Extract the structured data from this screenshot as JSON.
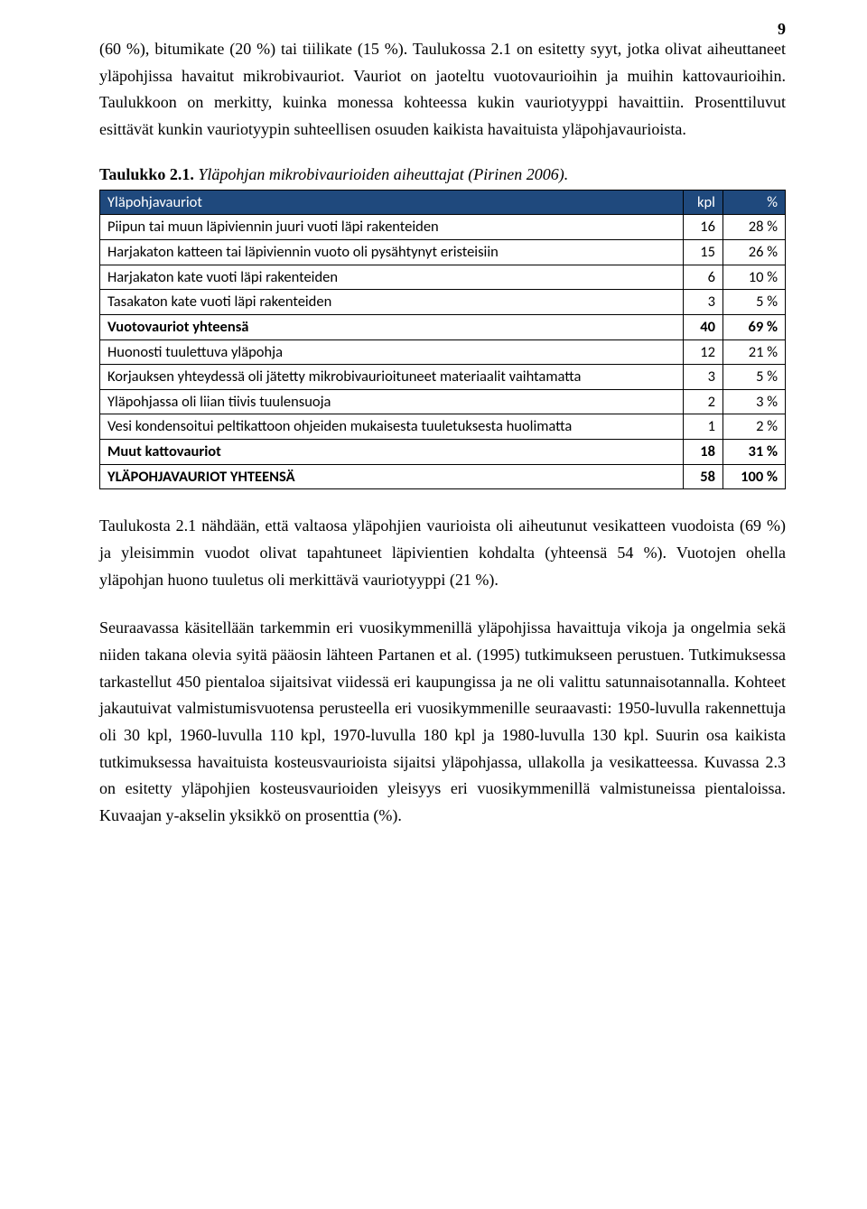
{
  "page_number": "9",
  "paragraphs": {
    "p1": "(60 %), bitumikate (20 %) tai tiilikate (15 %). Taulukossa 2.1 on esitetty syyt, jotka olivat aiheuttaneet yläpohjissa havaitut mikrobivauriot. Vauriot on jaoteltu vuotovaurioihin ja muihin kattovaurioihin. Taulukkoon on merkitty, kuinka monessa kohteessa kukin vauriotyyppi havaittiin. Prosenttiluvut esittävät kunkin vauriotyypin suhteellisen osuuden kaikista havaituista yläpohjavaurioista.",
    "p2": "Taulukosta 2.1 nähdään, että valtaosa yläpohjien vaurioista oli aiheutunut vesikatteen vuodoista (69 %) ja yleisimmin vuodot olivat tapahtuneet läpivientien kohdalta (yhteensä 54 %). Vuotojen ohella yläpohjan huono tuuletus oli merkittävä vauriotyyppi (21 %).",
    "p3": "Seuraavassa käsitellään tarkemmin eri vuosikymmenillä yläpohjissa havaittuja vikoja ja ongelmia sekä niiden takana olevia syitä pääosin lähteen Partanen et al. (1995) tutkimukseen perustuen. Tutkimuksessa tarkastellut 450 pientaloa sijaitsivat viidessä eri kaupungissa ja ne oli valittu satunnaisotannalla. Kohteet jakautuivat valmistumisvuotensa perusteella eri vuosikymmenille seuraavasti: 1950-luvulla rakennettuja oli 30 kpl, 1960-luvulla 110 kpl, 1970-luvulla 180 kpl ja 1980-luvulla 130 kpl. Suurin osa kaikista tutkimuksessa havaituista kosteusvaurioista sijaitsi yläpohjassa, ullakolla ja vesikatteessa. Kuvassa 2.3 on esitetty yläpohjien kosteusvaurioiden yleisyys eri vuosikymmenillä valmistuneissa pientaloissa. Kuvaajan y-akselin yksikkö on prosenttia (%)."
  },
  "table_caption": {
    "label": "Taulukko 2.1.",
    "title": "Yläpohjan mikrobivaurioiden aiheuttajat (Pirinen 2006)."
  },
  "table": {
    "header": {
      "c1": "Yläpohjavauriot",
      "c2": "kpl",
      "c3": "%"
    },
    "header_bg": "#1f497d",
    "header_color": "#ffffff",
    "border_color": "#000000",
    "font_family": "Calibri",
    "font_size": 16.5,
    "rows": [
      {
        "label": "Piipun tai muun läpiviennin juuri vuoti läpi rakenteiden",
        "kpl": "16",
        "pct": "28 %",
        "bold": false
      },
      {
        "label": "Harjakaton katteen tai läpiviennin vuoto oli pysähtynyt eristeisiin",
        "kpl": "15",
        "pct": "26 %",
        "bold": false
      },
      {
        "label": "Harjakaton kate vuoti läpi rakenteiden",
        "kpl": "6",
        "pct": "10 %",
        "bold": false
      },
      {
        "label": "Tasakaton kate vuoti läpi rakenteiden",
        "kpl": "3",
        "pct": "5 %",
        "bold": false
      },
      {
        "label": "Vuotovauriot yhteensä",
        "kpl": "40",
        "pct": "69 %",
        "bold": true
      },
      {
        "label": "Huonosti tuulettuva yläpohja",
        "kpl": "12",
        "pct": "21 %",
        "bold": false
      },
      {
        "label": "Korjauksen yhteydessä oli jätetty mikrobivaurioituneet materiaalit vaihtamatta",
        "kpl": "3",
        "pct": "5 %",
        "bold": false
      },
      {
        "label": "Yläpohjassa oli liian tiivis tuulensuoja",
        "kpl": "2",
        "pct": "3 %",
        "bold": false
      },
      {
        "label": "Vesi kondensoitui peltikattoon ohjeiden mukaisesta tuuletuksesta huolimatta",
        "kpl": "1",
        "pct": "2 %",
        "bold": false
      },
      {
        "label": "Muut kattovauriot",
        "kpl": "18",
        "pct": "31 %",
        "bold": true
      },
      {
        "label": "YLÄPOHJAVAURIOT YHTEENSÄ",
        "kpl": "58",
        "pct": "100 %",
        "bold": true
      }
    ]
  }
}
